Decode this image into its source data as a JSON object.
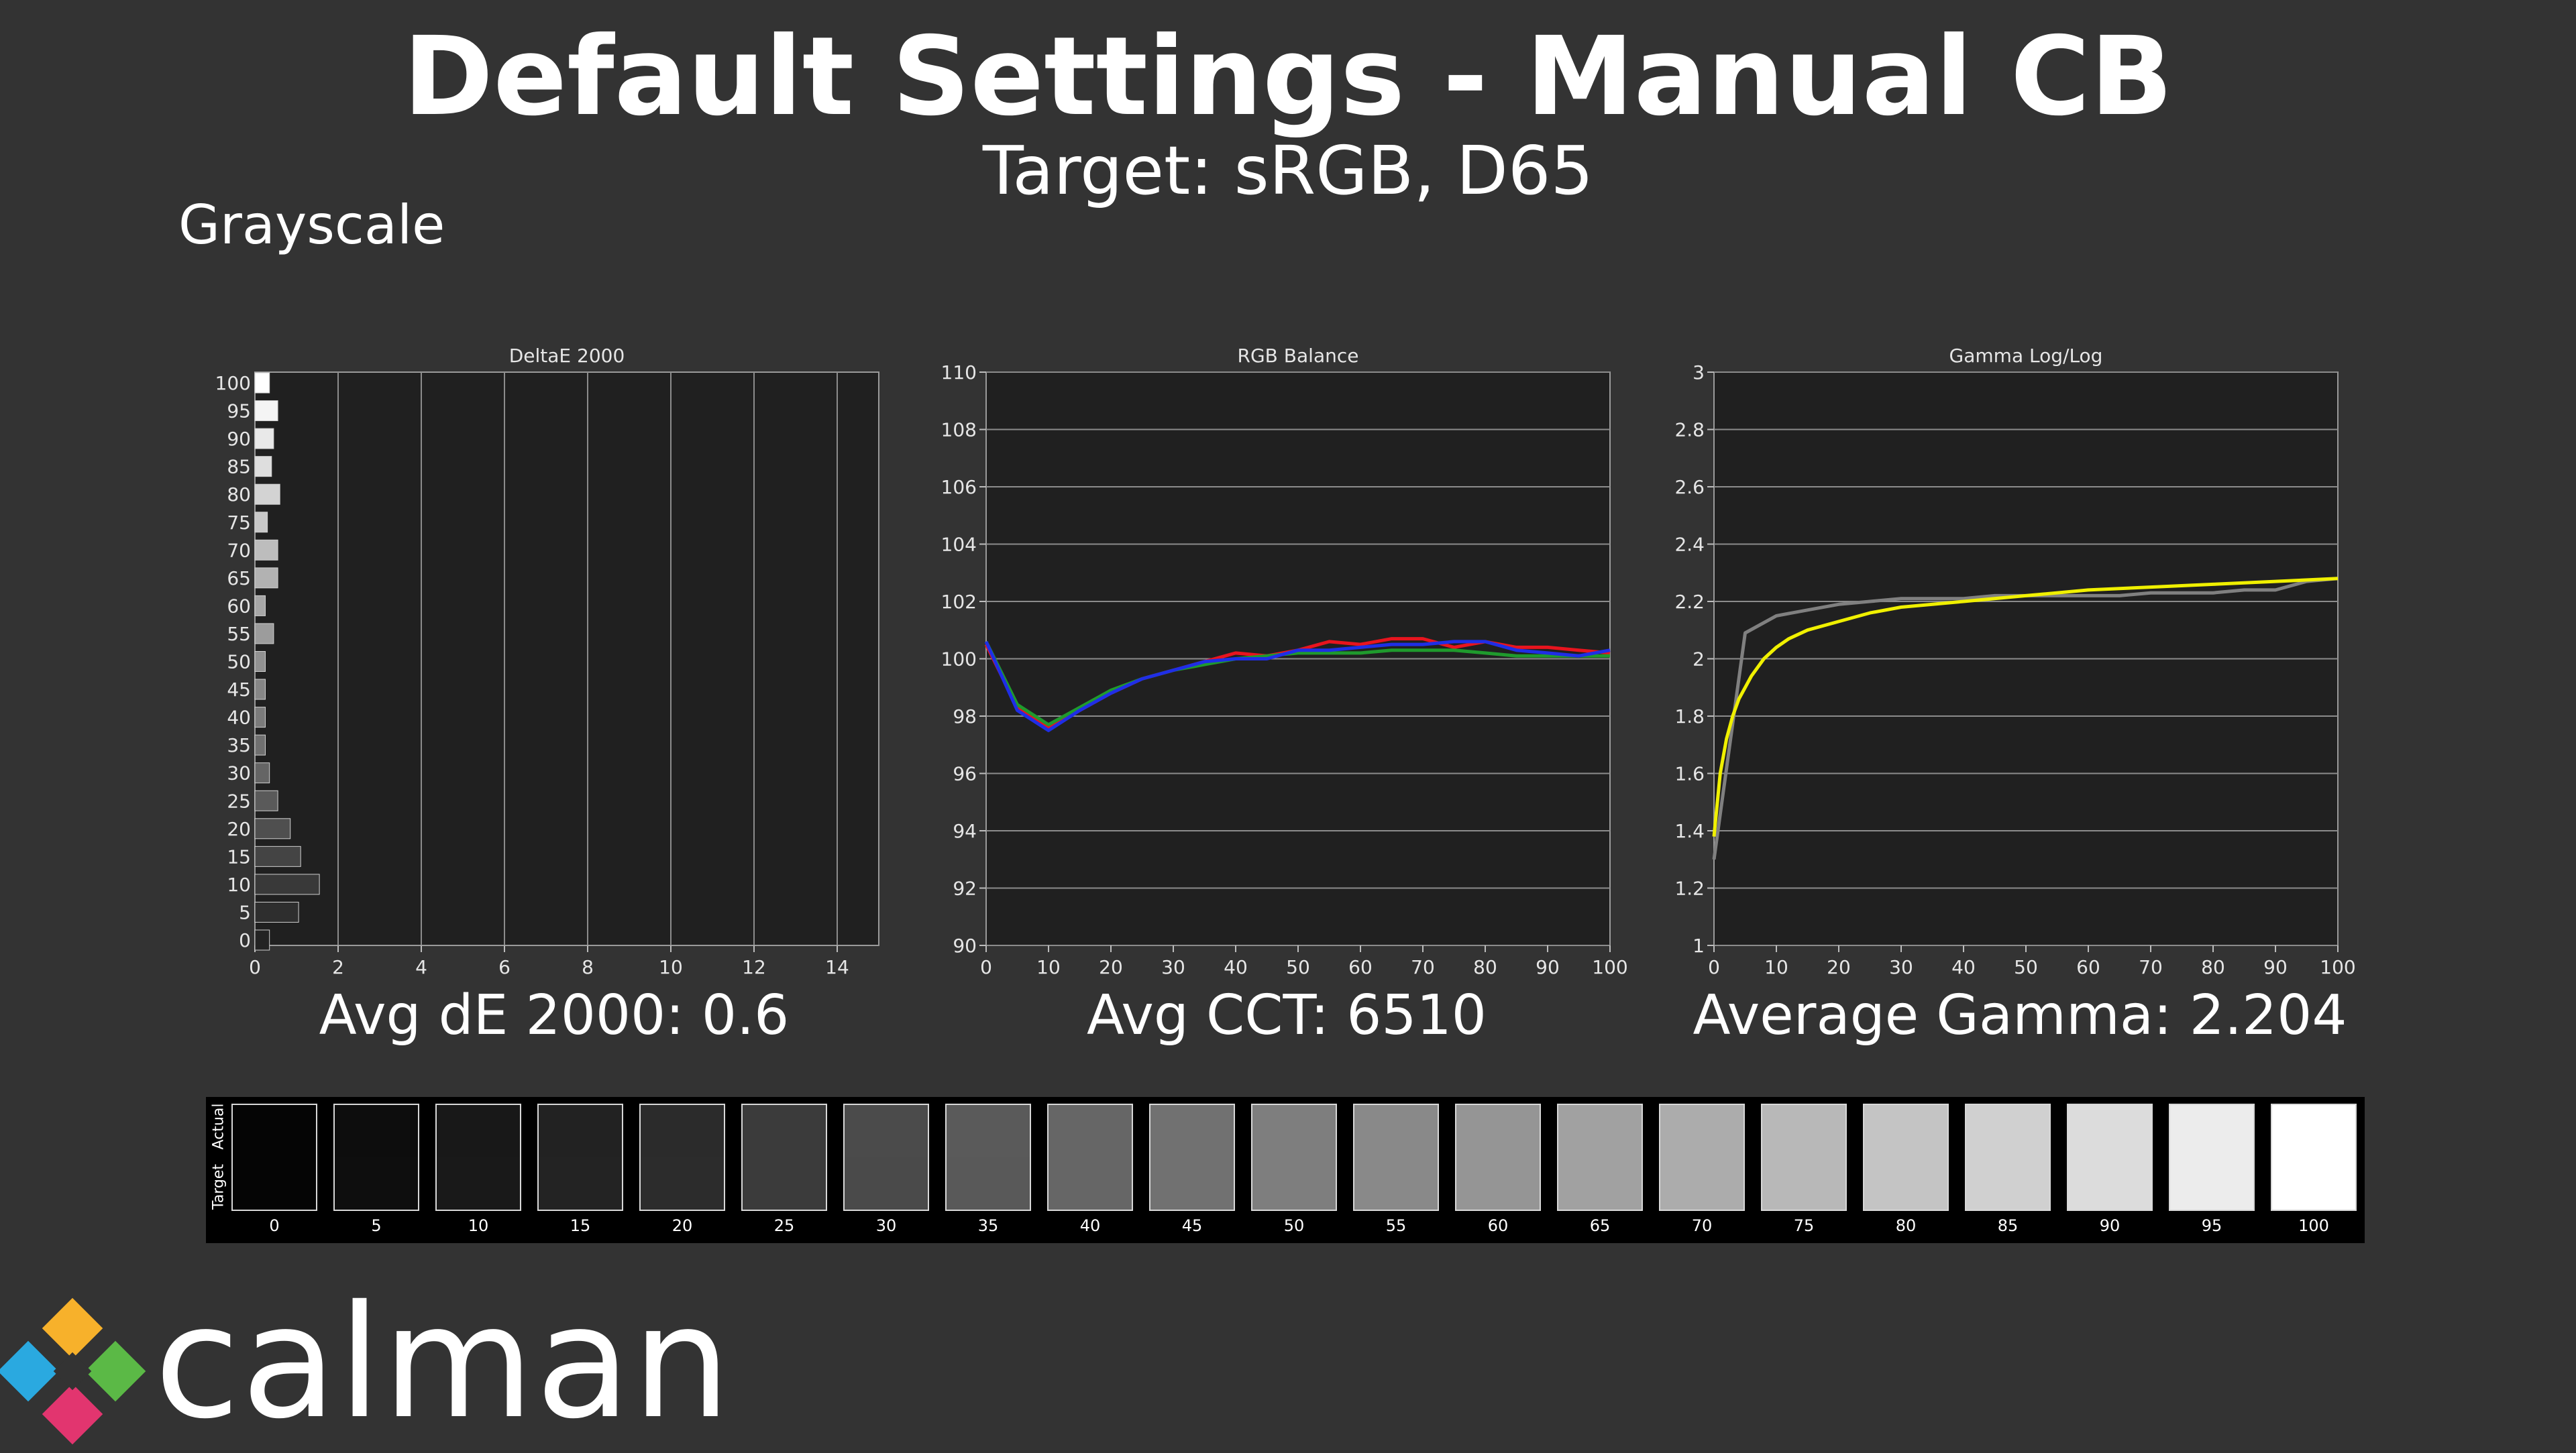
{
  "header": {
    "title": "Default Settings - Manual CB",
    "subtitle": "Target: sRGB, D65",
    "section": "Grayscale"
  },
  "summary": {
    "avg_de": "Avg dE 2000: 0.6",
    "avg_cct": "Avg CCT: 6510",
    "avg_gamma": "Average Gamma: 2.204"
  },
  "strip": {
    "actual_label": "Actual",
    "target_label": "Target",
    "levels": [
      "0",
      "5",
      "10",
      "15",
      "20",
      "25",
      "30",
      "35",
      "40",
      "45",
      "50",
      "55",
      "60",
      "65",
      "70",
      "75",
      "80",
      "85",
      "90",
      "95",
      "100"
    ],
    "actual_gray": [
      "#050505",
      "#0d0d0d",
      "#181818",
      "#222222",
      "#2b2b2b",
      "#3b3b3b",
      "#4b4b4b",
      "#5a5a5a",
      "#666666",
      "#717171",
      "#7e7e7e",
      "#898989",
      "#959595",
      "#a1a1a1",
      "#acacac",
      "#b8b8b8",
      "#c4c4c4",
      "#d0d0d0",
      "#dcdcdc",
      "#ececec",
      "#ffffff"
    ],
    "target_gray": [
      "#050505",
      "#0e0e0e",
      "#191919",
      "#232323",
      "#2c2c2c",
      "#3b3b3b",
      "#4a4a4a",
      "#595959",
      "#666666",
      "#717171",
      "#7e7e7e",
      "#898989",
      "#959595",
      "#a1a1a1",
      "#acacac",
      "#b8b8b8",
      "#c4c4c4",
      "#d0d0d0",
      "#dcdcdc",
      "#ececec",
      "#ffffff"
    ]
  },
  "brand": {
    "name": "calman"
  },
  "chart_data": [
    {
      "type": "bar",
      "orientation": "horizontal",
      "title": "DeltaE 2000",
      "categories": [
        "100",
        "95",
        "90",
        "85",
        "80",
        "75",
        "70",
        "65",
        "60",
        "55",
        "50",
        "45",
        "40",
        "35",
        "30",
        "25",
        "20",
        "15",
        "10",
        "5",
        "0"
      ],
      "values": [
        0.35,
        0.55,
        0.45,
        0.4,
        0.6,
        0.3,
        0.55,
        0.55,
        0.25,
        0.45,
        0.25,
        0.25,
        0.25,
        0.25,
        0.35,
        0.55,
        0.85,
        1.1,
        1.55,
        1.05,
        0.35
      ],
      "xlim": [
        0,
        15
      ],
      "xticks": [
        "0",
        "2",
        "4",
        "6",
        "8",
        "10",
        "12",
        "14"
      ],
      "grid": true
    },
    {
      "type": "line",
      "title": "RGB Balance",
      "x": [
        0,
        5,
        10,
        15,
        20,
        25,
        30,
        35,
        40,
        45,
        50,
        55,
        60,
        65,
        70,
        75,
        80,
        85,
        90,
        95,
        100
      ],
      "series": [
        {
          "color": "#e8141e",
          "values": [
            100.5,
            98.3,
            97.6,
            98.2,
            98.8,
            99.3,
            99.6,
            99.9,
            100.2,
            100.1,
            100.3,
            100.6,
            100.5,
            100.7,
            100.7,
            100.4,
            100.6,
            100.4,
            100.4,
            100.3,
            100.2
          ]
        },
        {
          "color": "#1f9a2d",
          "values": [
            100.6,
            98.4,
            97.7,
            98.3,
            98.9,
            99.3,
            99.6,
            99.8,
            100.0,
            100.1,
            100.2,
            100.2,
            100.2,
            100.3,
            100.3,
            100.3,
            100.2,
            100.1,
            100.1,
            100.1,
            100.1
          ]
        },
        {
          "color": "#1f2ee6",
          "values": [
            100.6,
            98.2,
            97.5,
            98.2,
            98.8,
            99.3,
            99.6,
            99.9,
            100.0,
            100.0,
            100.3,
            100.3,
            100.4,
            100.5,
            100.5,
            100.6,
            100.6,
            100.3,
            100.2,
            100.1,
            100.3
          ]
        }
      ],
      "xlim": [
        0,
        100
      ],
      "ylim": [
        90,
        110
      ],
      "xticks": [
        "0",
        "10",
        "20",
        "30",
        "40",
        "50",
        "60",
        "70",
        "80",
        "90",
        "100"
      ],
      "yticks": [
        "90",
        "92",
        "94",
        "96",
        "98",
        "100",
        "102",
        "104",
        "106",
        "108",
        "110"
      ],
      "grid": true
    },
    {
      "type": "line",
      "title": "Gamma Log/Log",
      "series": [
        {
          "color": "#808080",
          "x": [
            0,
            5,
            10,
            15,
            20,
            25,
            30,
            35,
            40,
            45,
            50,
            55,
            60,
            65,
            70,
            75,
            80,
            85,
            90,
            95,
            100
          ],
          "values": [
            1.3,
            2.09,
            2.15,
            2.17,
            2.19,
            2.2,
            2.21,
            2.21,
            2.21,
            2.22,
            2.22,
            2.22,
            2.22,
            2.22,
            2.23,
            2.23,
            2.23,
            2.24,
            2.24,
            2.27,
            2.28
          ]
        },
        {
          "color": "#f0f000",
          "x": [
            0,
            1,
            2,
            3,
            4,
            5,
            6,
            8,
            10,
            12,
            15,
            20,
            25,
            30,
            40,
            50,
            60,
            70,
            80,
            90,
            100
          ],
          "values": [
            1.38,
            1.6,
            1.72,
            1.8,
            1.86,
            1.9,
            1.94,
            2.0,
            2.04,
            2.07,
            2.1,
            2.13,
            2.16,
            2.18,
            2.2,
            2.22,
            2.24,
            2.25,
            2.26,
            2.27,
            2.28
          ]
        }
      ],
      "xlim": [
        0,
        100
      ],
      "ylim": [
        1,
        3
      ],
      "xticks": [
        "0",
        "10",
        "20",
        "30",
        "40",
        "50",
        "60",
        "70",
        "80",
        "90",
        "100"
      ],
      "yticks": [
        "1",
        "1.2",
        "1.4",
        "1.6",
        "1.8",
        "2",
        "2.2",
        "2.4",
        "2.6",
        "2.8",
        "3"
      ],
      "grid": true
    }
  ]
}
